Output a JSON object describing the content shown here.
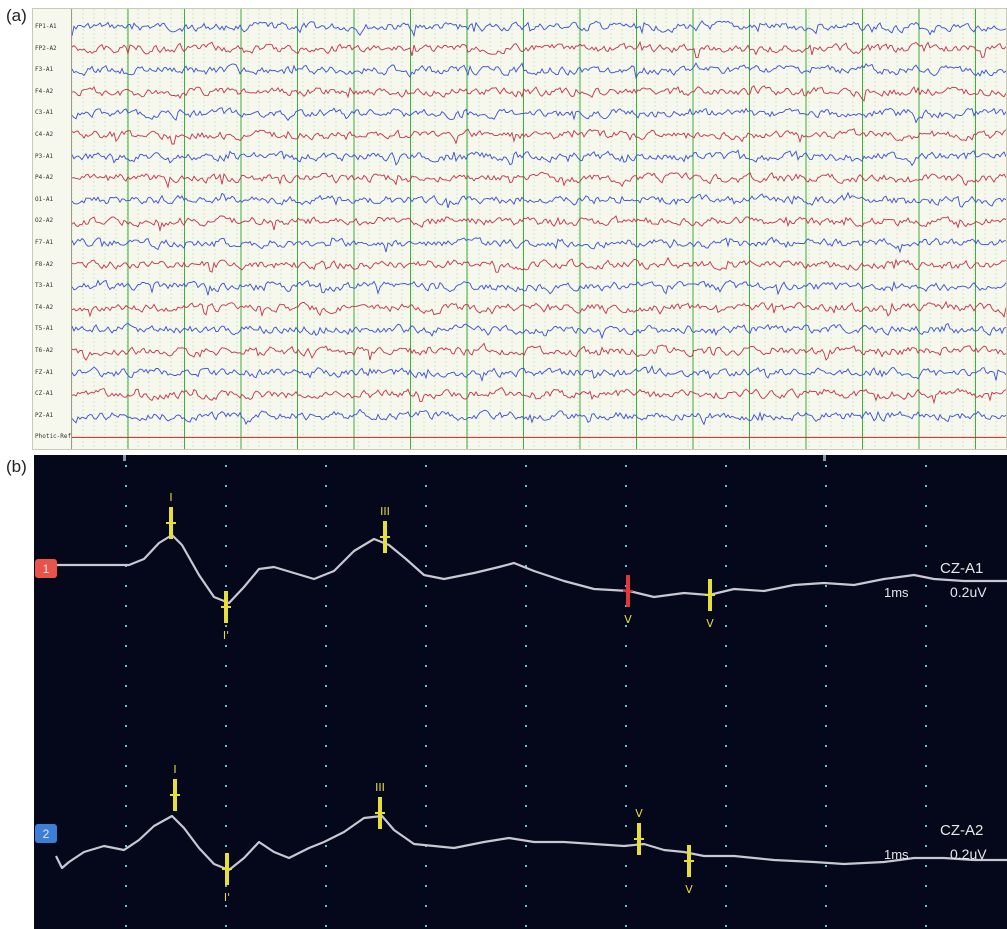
{
  "panel_a": {
    "label": "(a)",
    "channels": [
      "FP1-A1",
      "FP2-A2",
      "F3-A1",
      "F4-A2",
      "C3-A1",
      "C4-A2",
      "P3-A1",
      "P4-A2",
      "O1-A1",
      "O2-A2",
      "F7-A1",
      "F8-A2",
      "T3-A1",
      "T4-A2",
      "T5-A1",
      "T6-A2",
      "FZ-A1",
      "CZ-A1",
      "PZ-A1",
      "Photic-Ref"
    ],
    "colors": {
      "left": "#3a4fd0",
      "right": "#c2334a",
      "photic": "#d92020",
      "grid_major": "#3fae3f",
      "grid_minor": "#a9d8a9",
      "background": "#f6f7ed"
    }
  },
  "panel_b": {
    "label": "(b)",
    "traces": [
      {
        "id": "1",
        "badge_color": "#e8534a",
        "channel": "CZ-A1",
        "time_scale": "1ms",
        "amp_scale": "0.2uV",
        "markers": [
          "I",
          "I'",
          "III",
          "V",
          "V"
        ]
      },
      {
        "id": "2",
        "badge_color": "#3b7fd6",
        "channel": "CZ-A2",
        "time_scale": "1ms",
        "amp_scale": "0.2uV",
        "markers": [
          "I",
          "I'",
          "III",
          "V",
          "V"
        ]
      }
    ],
    "colors": {
      "background": "#05071a",
      "trace": "#c8c8d2",
      "marker": "#e6df3a",
      "marker_red": "#e0383a",
      "grid": "#5fc6c6"
    }
  }
}
